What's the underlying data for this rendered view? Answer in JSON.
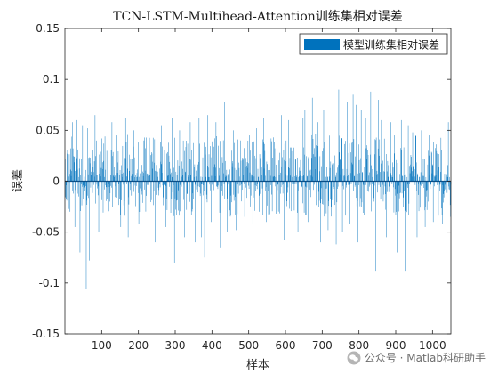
{
  "chart_data": {
    "type": "bar",
    "title": "TCN-LSTM-Multihead-Attention训练集相对误差",
    "xlabel": "样本",
    "ylabel": "误差",
    "xlim": [
      0,
      1050
    ],
    "ylim": [
      -0.15,
      0.15
    ],
    "xticks": [
      100,
      200,
      300,
      400,
      500,
      600,
      700,
      800,
      900,
      1000
    ],
    "yticks": [
      -0.15,
      -0.1,
      -0.05,
      0,
      0.05,
      0.1,
      0.15
    ],
    "legend_position": "top-right",
    "grid": false,
    "series": [
      {
        "name": "模型训练集相对误差",
        "color": "#0072BD",
        "sample_count": 1050,
        "spikes": [
          [
            8,
            0.04
          ],
          [
            20,
            0.058
          ],
          [
            27,
            -0.045
          ],
          [
            33,
            0.06
          ],
          [
            41,
            -0.07
          ],
          [
            48,
            0.055
          ],
          [
            58,
            -0.106
          ],
          [
            62,
            0.052
          ],
          [
            66,
            -0.078
          ],
          [
            82,
            0.065
          ],
          [
            92,
            -0.05
          ],
          [
            101,
            0.042
          ],
          [
            118,
            -0.052
          ],
          [
            128,
            0.058
          ],
          [
            141,
            0.045
          ],
          [
            152,
            -0.045
          ],
          [
            165,
            0.062
          ],
          [
            172,
            -0.055
          ],
          [
            188,
            0.05
          ],
          [
            201,
            -0.042
          ],
          [
            215,
            0.04
          ],
          [
            229,
            0.048
          ],
          [
            245,
            -0.06
          ],
          [
            262,
            0.055
          ],
          [
            275,
            -0.045
          ],
          [
            291,
            0.062
          ],
          [
            298,
            -0.08
          ],
          [
            312,
            0.05
          ],
          [
            325,
            -0.055
          ],
          [
            341,
            0.058
          ],
          [
            355,
            -0.06
          ],
          [
            365,
            0.062
          ],
          [
            372,
            -0.055
          ],
          [
            380,
            -0.075
          ],
          [
            389,
            0.065
          ],
          [
            398,
            -0.04
          ],
          [
            411,
            0.058
          ],
          [
            423,
            -0.065
          ],
          [
            434,
            0.078
          ],
          [
            441,
            -0.05
          ],
          [
            458,
            0.05
          ],
          [
            466,
            -0.048
          ],
          [
            478,
            0.04
          ],
          [
            489,
            -0.035
          ],
          [
            502,
            0.045
          ],
          [
            511,
            -0.042
          ],
          [
            521,
            0.052
          ],
          [
            528,
            -0.03
          ],
          [
            534,
            -0.099
          ],
          [
            541,
            0.062
          ],
          [
            548,
            -0.04
          ],
          [
            561,
            0.042
          ],
          [
            577,
            0.05
          ],
          [
            589,
            0.065
          ],
          [
            597,
            -0.058
          ],
          [
            608,
            0.06
          ],
          [
            620,
            0.055
          ],
          [
            634,
            -0.05
          ],
          [
            648,
            0.062
          ],
          [
            653,
            0.07
          ],
          [
            661,
            -0.04
          ],
          [
            673,
            0.082
          ],
          [
            688,
            0.058
          ],
          [
            695,
            -0.06
          ],
          [
            704,
            0.07
          ],
          [
            716,
            -0.048
          ],
          [
            729,
            0.075
          ],
          [
            738,
            -0.062
          ],
          [
            745,
            0.09
          ],
          [
            755,
            -0.05
          ],
          [
            768,
            0.078
          ],
          [
            775,
            -0.042
          ],
          [
            784,
            0.085
          ],
          [
            793,
            0.075
          ],
          [
            797,
            -0.06
          ],
          [
            806,
            0.07
          ],
          [
            818,
            0.062
          ],
          [
            832,
            0.088
          ],
          [
            846,
            -0.088
          ],
          [
            853,
            0.08
          ],
          [
            861,
            0.06
          ],
          [
            874,
            -0.055
          ],
          [
            887,
            0.058
          ],
          [
            896,
            0.045
          ],
          [
            903,
            -0.07
          ],
          [
            915,
            0.06
          ],
          [
            926,
            -0.088
          ],
          [
            934,
            0.055
          ],
          [
            946,
            0.048
          ],
          [
            958,
            -0.055
          ],
          [
            970,
            0.05
          ],
          [
            980,
            -0.045
          ],
          [
            991,
            0.045
          ],
          [
            1002,
            -0.04
          ],
          [
            1015,
            0.055
          ],
          [
            1027,
            -0.042
          ],
          [
            1036,
            0.05
          ],
          [
            1043,
            0.058
          ],
          [
            1049,
            -0.035
          ]
        ]
      }
    ]
  },
  "watermark": {
    "text": "公众号 · Matlab科研助手"
  }
}
